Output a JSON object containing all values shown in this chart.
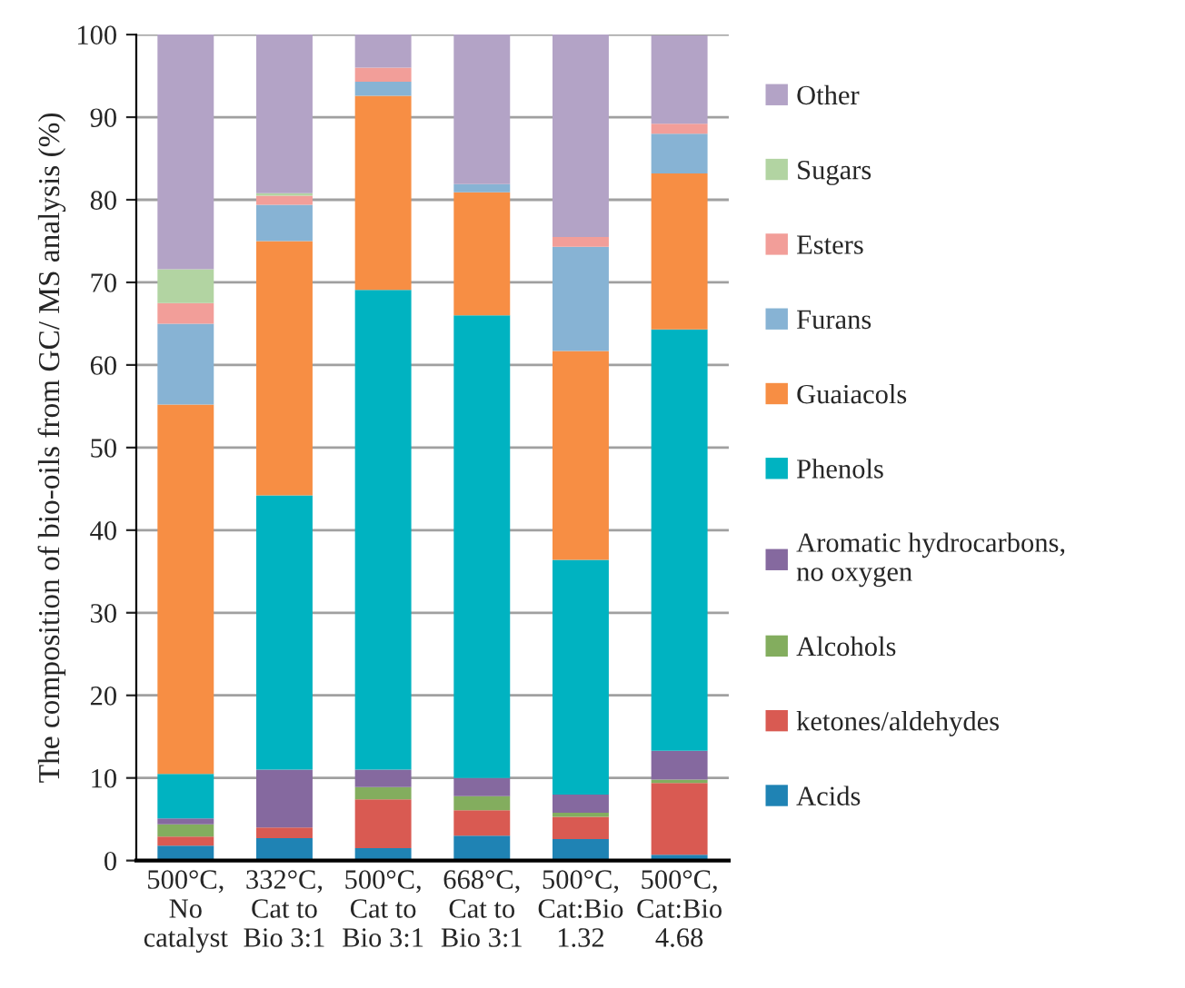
{
  "chart_data": {
    "type": "bar",
    "stacked": true,
    "ylabel": "The composition of bio-oils from GC/ MS analysis (%)",
    "categories": [
      "500°C,\nNo\ncatalyst",
      "332°C,\nCat to\nBio 3:1",
      "500°C,\nCat to\nBio 3:1",
      "668°C,\nCat to\nBio 3:1",
      "500°C,\nCat:Bio\n1.32",
      "500°C,\nCat:Bio\n4.68"
    ],
    "series": [
      {
        "name": "Acids",
        "color": "#1f83b4",
        "values": [
          1.8,
          2.7,
          1.5,
          3.0,
          2.6,
          0.7
        ]
      },
      {
        "name": "ketones/aldehydes",
        "color": "#d95a52",
        "values": [
          1.1,
          1.3,
          5.9,
          3.1,
          2.7,
          8.7
        ]
      },
      {
        "name": "Alcohols",
        "color": "#83ad5e",
        "values": [
          1.5,
          0,
          1.5,
          1.7,
          0.5,
          0.4
        ]
      },
      {
        "name": "Aromatic hydrocarbons,\nno oxygen",
        "color": "#85699f",
        "values": [
          0.7,
          7.0,
          2.1,
          2.2,
          2.2,
          3.5
        ]
      },
      {
        "name": "Phenols",
        "color": "#00b3c1",
        "values": [
          5.4,
          33.2,
          58.1,
          56.0,
          28.4,
          51.0
        ]
      },
      {
        "name": "Guaiacols",
        "color": "#f78e44",
        "values": [
          44.7,
          30.8,
          23.5,
          14.9,
          25.3,
          18.9
        ]
      },
      {
        "name": "Furans",
        "color": "#87b3d4",
        "values": [
          9.8,
          4.4,
          1.7,
          1.0,
          12.6,
          4.8
        ]
      },
      {
        "name": "Esters",
        "color": "#f29e99",
        "values": [
          2.5,
          1.1,
          1.7,
          0,
          1.2,
          1.2
        ]
      },
      {
        "name": "Sugars",
        "color": "#b2d4a2",
        "values": [
          4.1,
          0.3,
          0,
          0,
          0,
          0
        ]
      },
      {
        "name": "Other",
        "color": "#b3a3c6",
        "values": [
          28.4,
          19.2,
          4.0,
          18.1,
          24.5,
          10.7
        ]
      }
    ],
    "ylim": [
      0,
      100
    ],
    "yticks": [
      0,
      10,
      20,
      30,
      40,
      50,
      60,
      70,
      80,
      90,
      100
    ],
    "grid": "y",
    "legend": "right"
  }
}
